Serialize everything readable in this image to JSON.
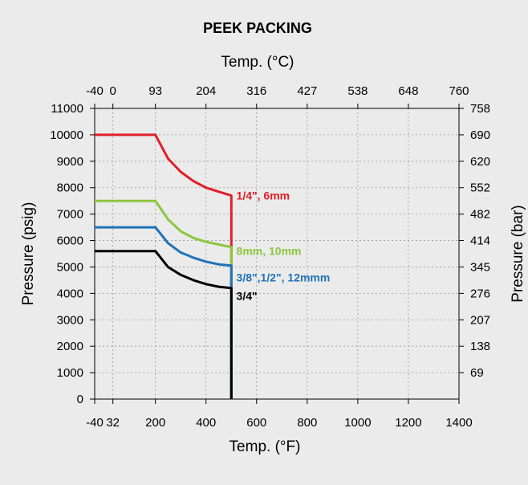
{
  "chart_data": {
    "type": "line",
    "title": "PEEK PACKING",
    "xlabel": "Temp. (°F)",
    "x2label": "Temp. (°C)",
    "ylabel": "Pressure (psig)",
    "y2label": "Pressure (bar)",
    "xlim": [
      -40,
      1400
    ],
    "ylim": [
      0,
      11000
    ],
    "grid": true,
    "x_ticks": [
      {
        "v": -40,
        "label": "-40"
      },
      {
        "v": 32,
        "label": "32"
      },
      {
        "v": 200,
        "label": "200"
      },
      {
        "v": 400,
        "label": "400"
      },
      {
        "v": 600,
        "label": "600"
      },
      {
        "v": 800,
        "label": "800"
      },
      {
        "v": 1000,
        "label": "1000"
      },
      {
        "v": 1200,
        "label": "1200"
      },
      {
        "v": 1400,
        "label": "1400"
      }
    ],
    "x2_ticks": [
      {
        "v": -40,
        "label": "-40"
      },
      {
        "v": 32,
        "label": "0"
      },
      {
        "v": 200,
        "label": "93"
      },
      {
        "v": 400,
        "label": "204"
      },
      {
        "v": 600,
        "label": "316"
      },
      {
        "v": 800,
        "label": "427"
      },
      {
        "v": 1000,
        "label": "538"
      },
      {
        "v": 1200,
        "label": "648"
      },
      {
        "v": 1400,
        "label": "760"
      }
    ],
    "y_ticks": [
      {
        "v": 0,
        "label": "0"
      },
      {
        "v": 1000,
        "label": "1000"
      },
      {
        "v": 2000,
        "label": "2000"
      },
      {
        "v": 3000,
        "label": "3000"
      },
      {
        "v": 4000,
        "label": "4000"
      },
      {
        "v": 5000,
        "label": "5000"
      },
      {
        "v": 6000,
        "label": "6000"
      },
      {
        "v": 7000,
        "label": "7000"
      },
      {
        "v": 8000,
        "label": "8000"
      },
      {
        "v": 9000,
        "label": "9000"
      },
      {
        "v": 10000,
        "label": "10000"
      },
      {
        "v": 11000,
        "label": "11000"
      }
    ],
    "y2_ticks": [
      {
        "v": 1000,
        "label": "69"
      },
      {
        "v": 2000,
        "label": "138"
      },
      {
        "v": 3000,
        "label": "207"
      },
      {
        "v": 4000,
        "label": "276"
      },
      {
        "v": 5000,
        "label": "345"
      },
      {
        "v": 6000,
        "label": "414"
      },
      {
        "v": 7000,
        "label": "482"
      },
      {
        "v": 8000,
        "label": "552"
      },
      {
        "v": 9000,
        "label": "620"
      },
      {
        "v": 10000,
        "label": "690"
      },
      {
        "v": 11000,
        "label": "758"
      }
    ],
    "series": [
      {
        "name": "1/4\", 6mm",
        "color": "#e0202a",
        "label_at": {
          "x": 520,
          "y": 7550
        },
        "points": [
          [
            -40,
            10000
          ],
          [
            200,
            10000
          ],
          [
            250,
            9100
          ],
          [
            300,
            8600
          ],
          [
            350,
            8250
          ],
          [
            400,
            8000
          ],
          [
            450,
            7850
          ],
          [
            500,
            7700
          ],
          [
            500,
            0
          ]
        ]
      },
      {
        "name": "8mm, 10mm",
        "color": "#8dc63f",
        "label_at": {
          "x": 520,
          "y": 5450
        },
        "points": [
          [
            -40,
            7500
          ],
          [
            200,
            7500
          ],
          [
            250,
            6800
          ],
          [
            300,
            6350
          ],
          [
            350,
            6100
          ],
          [
            400,
            5950
          ],
          [
            450,
            5850
          ],
          [
            500,
            5750
          ],
          [
            500,
            0
          ]
        ]
      },
      {
        "name": "3/8\",1/2\", 12mmm",
        "color": "#1f73b7",
        "label_at": {
          "x": 520,
          "y": 4450
        },
        "points": [
          [
            -40,
            6500
          ],
          [
            200,
            6500
          ],
          [
            250,
            5900
          ],
          [
            300,
            5550
          ],
          [
            350,
            5350
          ],
          [
            400,
            5200
          ],
          [
            450,
            5100
          ],
          [
            500,
            5050
          ],
          [
            500,
            0
          ]
        ]
      },
      {
        "name": "3/4\"",
        "color": "#000000",
        "label_at": {
          "x": 520,
          "y": 3750
        },
        "points": [
          [
            -40,
            5600
          ],
          [
            200,
            5600
          ],
          [
            250,
            5000
          ],
          [
            300,
            4700
          ],
          [
            350,
            4500
          ],
          [
            400,
            4350
          ],
          [
            450,
            4250
          ],
          [
            500,
            4200
          ],
          [
            500,
            0
          ]
        ]
      }
    ]
  }
}
